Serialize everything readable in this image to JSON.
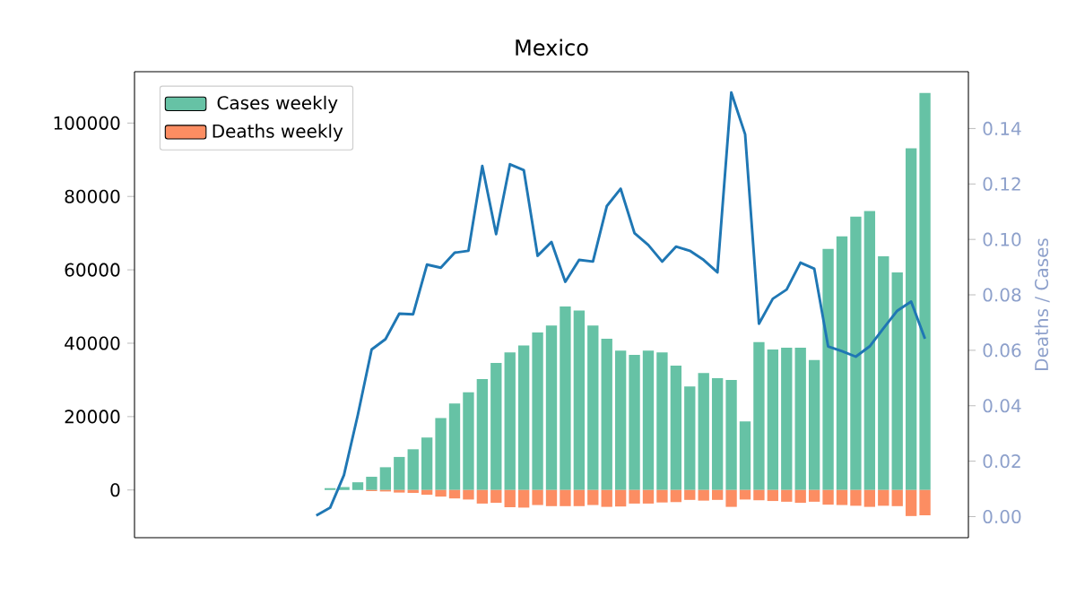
{
  "chart_data": {
    "type": "bar",
    "title": "Mexico",
    "y2label": "Deaths / Cases",
    "categories": [
      null,
      null,
      null,
      null,
      null,
      null,
      null,
      null,
      null,
      null,
      null,
      null,
      null,
      null,
      null,
      null,
      null,
      null,
      null,
      null,
      null,
      null,
      null,
      null,
      null,
      null,
      null,
      null,
      null,
      null,
      null,
      null,
      null,
      null,
      null,
      null,
      null,
      null,
      null,
      null,
      null,
      null,
      null,
      null,
      null,
      null,
      null,
      null,
      null,
      null,
      null,
      null,
      null,
      null,
      null
    ],
    "series": [
      {
        "name": "Cases weekly",
        "color": "#66c2a5",
        "values": [
          null,
          null,
          null,
          null,
          null,
          null,
          null,
          null,
          null,
          null,
          null,
          500,
          800,
          2100,
          3600,
          6200,
          9000,
          11100,
          14300,
          19600,
          23600,
          26600,
          30200,
          34600,
          37500,
          39400,
          42900,
          44800,
          50000,
          48900,
          44800,
          41200,
          38000,
          36800,
          38000,
          37500,
          33900,
          28200,
          31900,
          30500,
          30000,
          18700,
          40300,
          38300,
          38800,
          38800,
          35400,
          65700,
          69100,
          74500,
          76000,
          63700,
          59300,
          93100,
          108200
        ]
      },
      {
        "name": "Deaths weekly",
        "color": "#fc8d62",
        "values": [
          null,
          null,
          null,
          null,
          null,
          null,
          null,
          null,
          null,
          null,
          0,
          0,
          0,
          null,
          -300,
          -400,
          -700,
          -800,
          -1300,
          -1800,
          -2300,
          -2600,
          -3700,
          -3500,
          -4700,
          -4800,
          -4100,
          -4400,
          -4400,
          -4400,
          -4100,
          -4600,
          -4500,
          -3700,
          -3700,
          -3400,
          -3300,
          -2700,
          -2900,
          -2700,
          -4600,
          -2600,
          -2800,
          -3000,
          -3200,
          -3500,
          -3200,
          -4000,
          -4100,
          -4300,
          -4600,
          -4300,
          -4400,
          -7100,
          -6900
        ]
      },
      {
        "type": "line",
        "axis": "y2",
        "color": "#1f77b4",
        "values": [
          null,
          null,
          null,
          null,
          null,
          null,
          null,
          null,
          null,
          null,
          0.0004,
          0.0032,
          0.015,
          0.0366,
          0.0603,
          0.064,
          0.0732,
          0.073,
          0.0909,
          0.0898,
          0.0952,
          0.0959,
          0.1265,
          0.1019,
          0.1271,
          0.125,
          0.0941,
          0.0991,
          0.0847,
          0.0926,
          0.092,
          0.112,
          0.1183,
          0.1023,
          0.098,
          0.092,
          0.0974,
          0.0959,
          0.0926,
          0.0881,
          0.153,
          0.1379,
          0.0696,
          0.0786,
          0.0819,
          0.0916,
          0.0894,
          0.0614,
          0.0597,
          0.0577,
          0.0614,
          0.0679,
          0.0743,
          0.0776,
          0.0642
        ]
      }
    ],
    "ylim": [
      -13000,
      114000
    ],
    "yticks": [
      0,
      20000,
      40000,
      60000,
      80000,
      100000
    ],
    "y2lim": [
      -0.0076,
      0.1605
    ],
    "y2ticks": [
      {
        "value": 0,
        "label": "0.00"
      },
      {
        "value": 0.02,
        "label": "0.02"
      },
      {
        "value": 0.04,
        "label": "0.04"
      },
      {
        "value": 0.06,
        "label": "0.06"
      },
      {
        "value": 0.08,
        "label": "0.08"
      },
      {
        "value": 0.1,
        "label": "0.10"
      },
      {
        "value": 0.12,
        "label": "0.12"
      },
      {
        "value": 0.14,
        "label": "0.14"
      }
    ],
    "stacked": true,
    "legend": "top left"
  }
}
